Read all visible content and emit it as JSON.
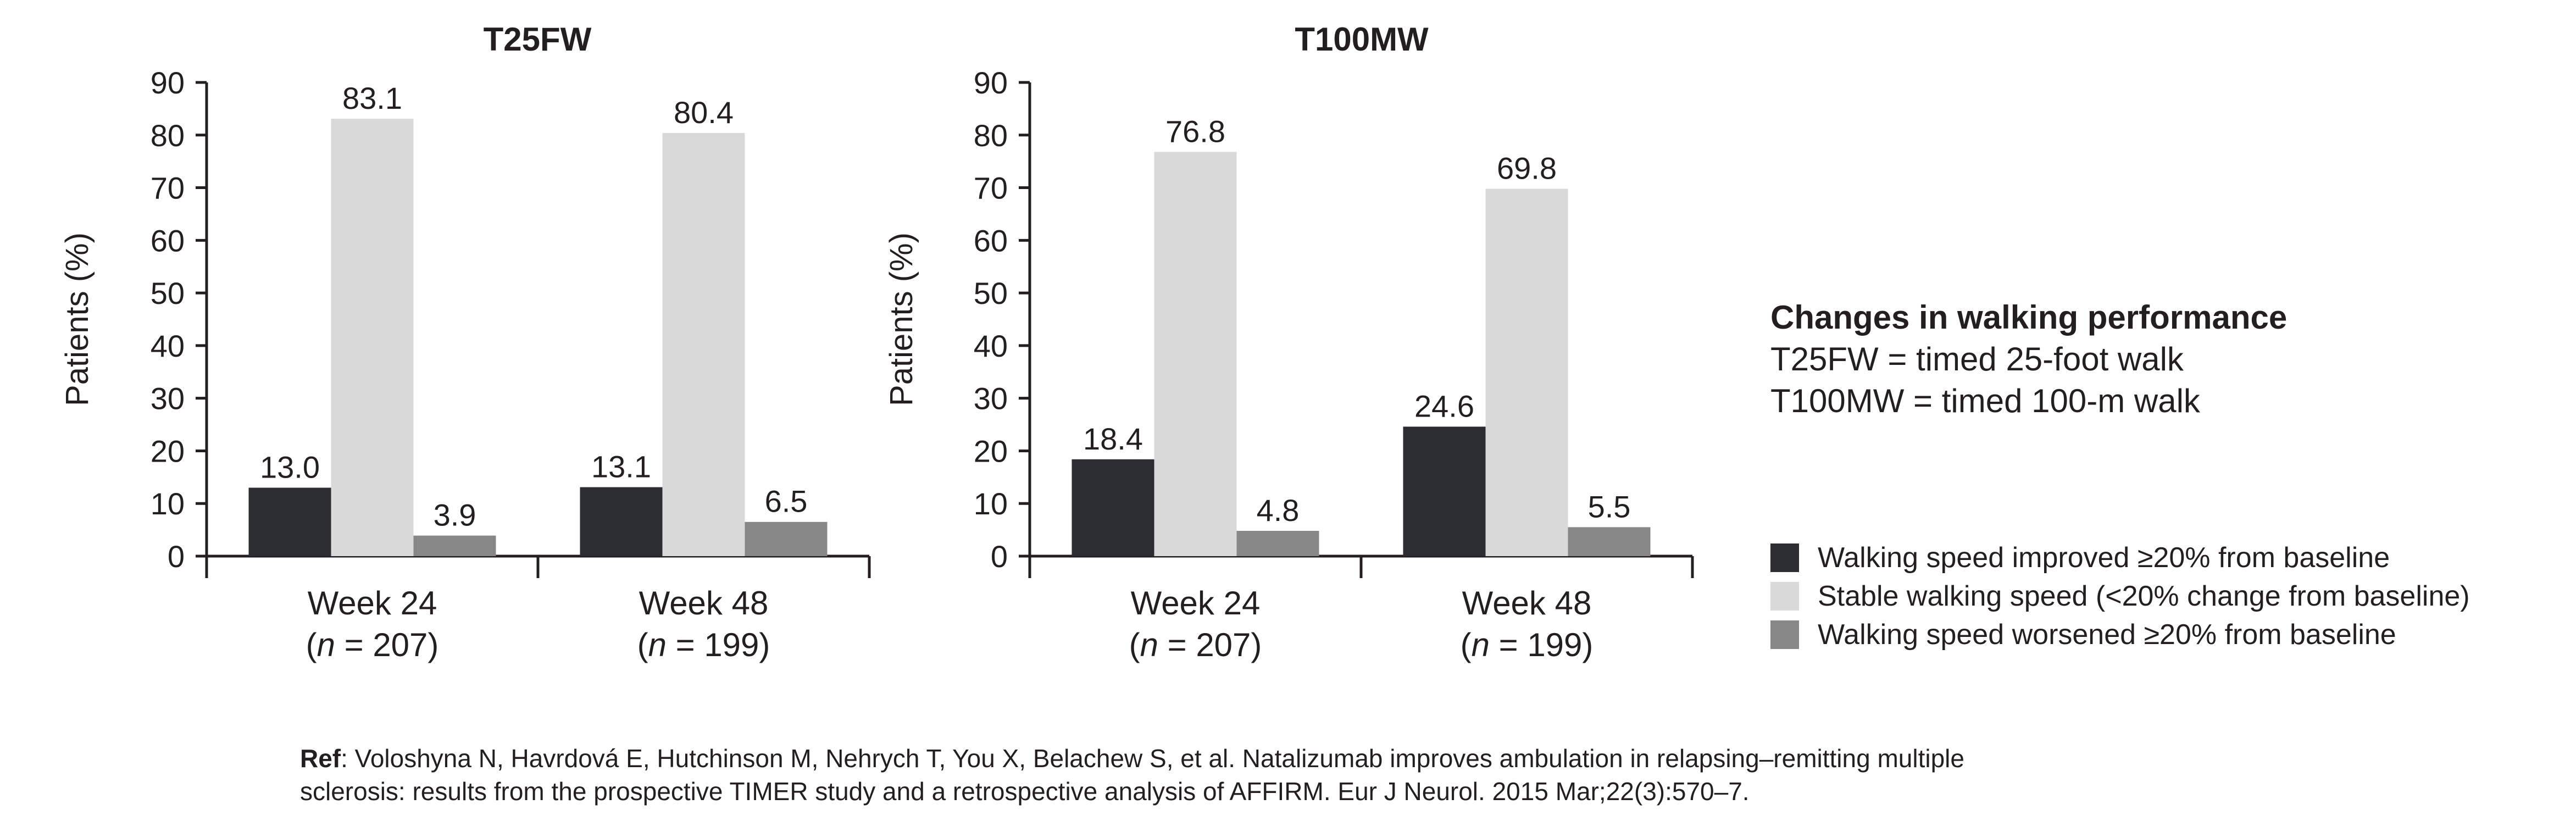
{
  "chart_data": [
    {
      "type": "bar",
      "title": "T25FW",
      "ylabel": "Patients (%)",
      "ylim": [
        0,
        90
      ],
      "yticks": [
        "0",
        "10",
        "20",
        "30",
        "40",
        "50",
        "60",
        "70",
        "80",
        "90"
      ],
      "categories": [
        {
          "line1": "Week 24",
          "n_prefix": "(",
          "n_italic": "n",
          "n_suffix": " = 207)"
        },
        {
          "line1": "Week 48",
          "n_prefix": "(",
          "n_italic": "n",
          "n_suffix": " = 199)"
        }
      ],
      "series": [
        {
          "name": "Walking speed improved ≥20% from baseline",
          "values": [
            13.0,
            13.1
          ],
          "labels": [
            "13.0",
            "13.1"
          ]
        },
        {
          "name": "Stable walking speed (<20% change from baseline)",
          "values": [
            83.1,
            80.4
          ],
          "labels": [
            "83.1",
            "80.4"
          ]
        },
        {
          "name": "Walking speed worsened ≥20% from baseline",
          "values": [
            3.9,
            6.5
          ],
          "labels": [
            "3.9",
            "6.5"
          ]
        }
      ]
    },
    {
      "type": "bar",
      "title": "T100MW",
      "ylabel": "Patients (%)",
      "ylim": [
        0,
        90
      ],
      "yticks": [
        "0",
        "10",
        "20",
        "30",
        "40",
        "50",
        "60",
        "70",
        "80",
        "90"
      ],
      "categories": [
        {
          "line1": "Week 24",
          "n_prefix": "(",
          "n_italic": "n",
          "n_suffix": " = 207)"
        },
        {
          "line1": "Week 48",
          "n_prefix": "(",
          "n_italic": "n",
          "n_suffix": " = 199)"
        }
      ],
      "series": [
        {
          "name": "Walking speed improved ≥20% from baseline",
          "values": [
            18.4,
            24.6
          ],
          "labels": [
            "18.4",
            "24.6"
          ]
        },
        {
          "name": "Stable walking speed (<20% change from baseline)",
          "values": [
            76.8,
            69.8
          ],
          "labels": [
            "76.8",
            "69.8"
          ]
        },
        {
          "name": "Walking speed worsened ≥20% from baseline",
          "values": [
            4.8,
            5.5
          ],
          "labels": [
            "4.8",
            "5.5"
          ]
        }
      ]
    }
  ],
  "colors": {
    "improved": "#2b2d33",
    "stable": "#d9d9d9",
    "worsened": "#878787",
    "axis": "#231f20"
  },
  "side_note": {
    "title": "Changes in walking performance",
    "line1": "T25FW = timed 25-foot walk",
    "line2": "T100MW = timed 100-m walk"
  },
  "legend": [
    "Walking speed improved ≥20% from baseline",
    "Stable walking speed (<20% change from baseline)",
    "Walking speed worsened ≥20% from baseline"
  ],
  "reference": {
    "label": "Ref",
    "text": ": Voloshyna N, Havrdová E, Hutchinson M, Nehrych T, You X, Belachew S, et al. Natalizumab improves ambulation in relapsing–remitting multiple",
    "line2": "sclerosis: results from the prospective TIMER study and a retrospective analysis of AFFIRM. Eur J Neurol. 2015 Mar;22(3):570–7."
  }
}
